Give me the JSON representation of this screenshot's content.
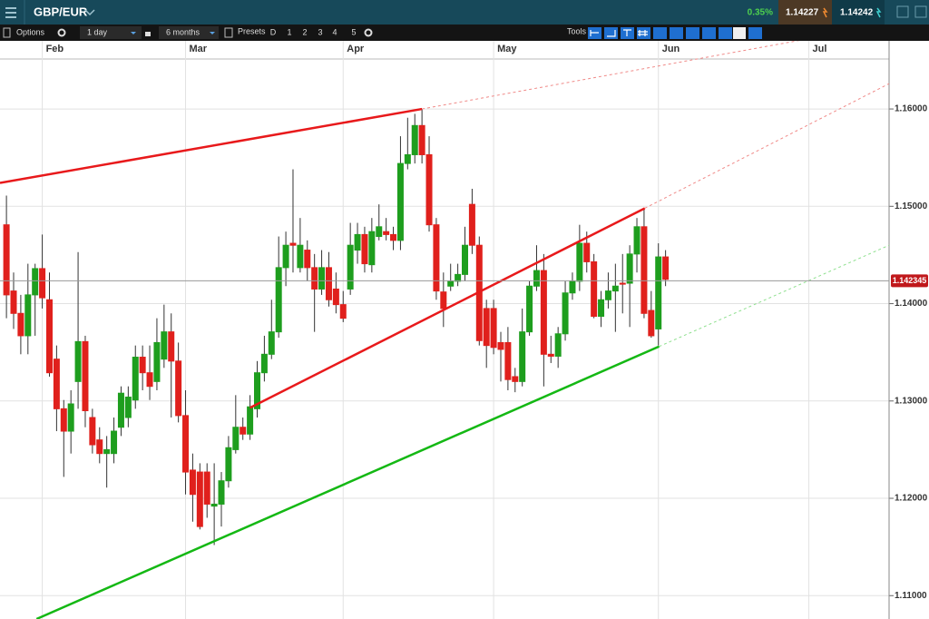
{
  "header": {
    "symbol": "GBP/EUR",
    "change": "0.35%",
    "sell": "1.14227",
    "buy": "1.14242"
  },
  "toolbar": {
    "options": "Options",
    "interval": "1 day",
    "range": "6 months",
    "presets": "Presets",
    "preset_buttons": [
      "D",
      "1",
      "2",
      "3",
      "4",
      "5"
    ],
    "tools": "Tools"
  },
  "chart_data": {
    "type": "candlestick",
    "x": [
      0,
      1,
      2,
      3,
      4,
      5,
      6,
      7,
      8,
      9,
      10,
      11,
      12,
      13,
      14,
      15,
      16,
      17,
      18,
      19,
      20,
      21,
      22,
      23,
      24,
      25,
      26,
      27,
      28,
      29,
      30,
      31,
      32,
      33,
      34,
      35,
      36,
      37,
      38,
      39,
      40,
      41,
      42,
      43,
      44,
      45,
      46,
      47,
      48,
      49,
      50,
      51,
      52,
      53,
      54,
      55,
      56,
      57,
      58,
      59,
      60,
      61,
      62,
      63,
      64,
      65,
      66,
      67,
      68,
      69,
      70,
      71,
      72,
      73,
      74,
      75,
      76,
      77,
      78,
      79,
      80,
      81,
      82,
      83,
      84,
      85,
      86,
      87,
      88,
      89,
      90,
      91,
      92
    ],
    "open": [
      1.1481,
      1.1413,
      1.139,
      1.1367,
      1.1409,
      1.1436,
      1.1404,
      1.1343,
      1.1292,
      1.1269,
      1.132,
      1.1361,
      1.1283,
      1.126,
      1.1246,
      1.1246,
      1.1273,
      1.1283,
      1.1301,
      1.1345,
      1.1329,
      1.132,
      1.1343,
      1.1371,
      1.1341,
      1.1285,
      1.1229,
      1.1227,
      1.1227,
      1.1192,
      1.1194,
      1.1218,
      1.125,
      1.1273,
      1.1266,
      1.1292,
      1.1329,
      1.1348,
      1.1371,
      1.1437,
      1.1462,
      1.1437,
      1.1455,
      1.1437,
      1.1415,
      1.1437,
      1.1415,
      1.1399,
      1.1415,
      1.1455,
      1.1471,
      1.144,
      1.1469,
      1.1474,
      1.1471,
      1.1465,
      1.1544,
      1.1553,
      1.1583,
      1.1553,
      1.1481,
      1.1412,
      1.1418,
      1.1423,
      1.143,
      1.1502,
      1.146,
      1.1395,
      1.1395,
      1.136,
      1.136,
      1.1325,
      1.132,
      1.1371,
      1.1418,
      1.1434,
      1.1348,
      1.1346,
      1.1369,
      1.1411,
      1.1423,
      1.1462,
      1.1443,
      1.1387,
      1.1404,
      1.1413,
      1.1421,
      1.1421,
      1.1451,
      1.1479,
      1.1393,
      1.1374,
      1.1448
    ],
    "high": [
      1.1511,
      1.1432,
      1.1409,
      1.1441,
      1.1441,
      1.1471,
      1.1432,
      1.1357,
      1.1301,
      1.1311,
      1.1453,
      1.1367,
      1.1292,
      1.1273,
      1.1264,
      1.1283,
      1.1315,
      1.1315,
      1.1357,
      1.1357,
      1.1357,
      1.1385,
      1.1399,
      1.139,
      1.136,
      1.1311,
      1.1246,
      1.1236,
      1.1236,
      1.1236,
      1.1227,
      1.1264,
      1.1306,
      1.1283,
      1.1306,
      1.1341,
      1.1367,
      1.1404,
      1.1469,
      1.1474,
      1.1538,
      1.1488,
      1.1465,
      1.1451,
      1.1455,
      1.1453,
      1.1432,
      1.1413,
      1.1483,
      1.1483,
      1.1479,
      1.1488,
      1.1502,
      1.1488,
      1.1479,
      1.1572,
      1.1591,
      1.1595,
      1.16,
      1.1572,
      1.1488,
      1.1432,
      1.1441,
      1.1441,
      1.1479,
      1.1518,
      1.1469,
      1.1404,
      1.1404,
      1.1371,
      1.1376,
      1.1334,
      1.1395,
      1.1423,
      1.146,
      1.1451,
      1.1367,
      1.1376,
      1.1423,
      1.1432,
      1.1481,
      1.1474,
      1.1451,
      1.1413,
      1.1432,
      1.1441,
      1.1451,
      1.146,
      1.1488,
      1.1497,
      1.1413,
      1.1462,
      1.1455
    ],
    "low": [
      1.1385,
      1.1374,
      1.1348,
      1.1348,
      1.1367,
      1.1395,
      1.1325,
      1.1269,
      1.1222,
      1.1246,
      1.1292,
      1.1273,
      1.1246,
      1.1236,
      1.1211,
      1.1236,
      1.1264,
      1.1273,
      1.1292,
      1.1311,
      1.1301,
      1.1311,
      1.1334,
      1.1283,
      1.1278,
      1.1204,
      1.1176,
      1.1168,
      1.118,
      1.1152,
      1.1171,
      1.1211,
      1.1246,
      1.126,
      1.126,
      1.1283,
      1.132,
      1.1343,
      1.1365,
      1.1418,
      1.1432,
      1.1432,
      1.1423,
      1.1371,
      1.1409,
      1.1397,
      1.139,
      1.1381,
      1.1409,
      1.1441,
      1.1432,
      1.1432,
      1.1465,
      1.1465,
      1.1455,
      1.1455,
      1.1538,
      1.1544,
      1.1544,
      1.1474,
      1.1404,
      1.1376,
      1.1413,
      1.1418,
      1.1423,
      1.1451,
      1.1357,
      1.1334,
      1.1348,
      1.132,
      1.1311,
      1.1309,
      1.1315,
      1.1367,
      1.1413,
      1.1315,
      1.1339,
      1.1334,
      1.1362,
      1.1404,
      1.1413,
      1.1432,
      1.1385,
      1.1376,
      1.1395,
      1.1371,
      1.139,
      1.1376,
      1.1432,
      1.1385,
      1.1365,
      1.1357,
      1.1418
    ],
    "close": [
      1.1409,
      1.139,
      1.1367,
      1.1409,
      1.1436,
      1.1406,
      1.1329,
      1.1292,
      1.1269,
      1.1297,
      1.1361,
      1.129,
      1.1255,
      1.1246,
      1.125,
      1.1269,
      1.1308,
      1.1304,
      1.1345,
      1.1329,
      1.1315,
      1.136,
      1.1371,
      1.1341,
      1.1285,
      1.1227,
      1.1204,
      1.1171,
      1.1194,
      1.1194,
      1.1218,
      1.1252,
      1.1273,
      1.1266,
      1.1294,
      1.1329,
      1.1348,
      1.1371,
      1.1437,
      1.146,
      1.146,
      1.146,
      1.1437,
      1.1415,
      1.1437,
      1.1404,
      1.1399,
      1.1385,
      1.146,
      1.1471,
      1.1441,
      1.1474,
      1.1479,
      1.1471,
      1.1465,
      1.1544,
      1.1553,
      1.1583,
      1.1553,
      1.1481,
      1.1413,
      1.1395,
      1.1423,
      1.143,
      1.146,
      1.146,
      1.1362,
      1.1357,
      1.1355,
      1.1353,
      1.1322,
      1.132,
      1.1371,
      1.1418,
      1.1434,
      1.1348,
      1.1346,
      1.1369,
      1.1411,
      1.1423,
      1.1462,
      1.1443,
      1.1387,
      1.1404,
      1.1413,
      1.1418,
      1.142,
      1.1451,
      1.1479,
      1.139,
      1.1367,
      1.1448,
      1.1425
    ],
    "up_color": "#1e9e1e",
    "down_color": "#e0201c",
    "xlim": [
      -0.9,
      123.2
    ],
    "ylim": [
      1.1076,
      1.167
    ],
    "xticks": [
      {
        "value": 5,
        "label": "Feb"
      },
      {
        "value": 25,
        "label": "Mar"
      },
      {
        "value": 47,
        "label": "Apr"
      },
      {
        "value": 68,
        "label": "May"
      },
      {
        "value": 91,
        "label": "Jun"
      },
      {
        "value": 112,
        "label": "Jul"
      }
    ],
    "yticks": [
      {
        "value": 1.11,
        "label": "1.11000"
      },
      {
        "value": 1.12,
        "label": "1.12000"
      },
      {
        "value": 1.13,
        "label": "1.13000"
      },
      {
        "value": 1.14,
        "label": "1.14000"
      },
      {
        "value": 1.15,
        "label": "1.15000"
      },
      {
        "value": 1.16,
        "label": "1.16000"
      }
    ],
    "grid": true,
    "last_price": 1.142345,
    "trendlines": [
      {
        "color": "#e8191b",
        "style": "solid",
        "x": [
          -0.9,
          58
        ],
        "y": [
          1.1524,
          1.16
        ]
      },
      {
        "color": "#f08a88",
        "style": "dashed",
        "x": [
          58,
          111.1
        ],
        "y": [
          1.16,
          1.1671
        ]
      },
      {
        "color": "#e8191b",
        "style": "solid",
        "x": [
          34,
          89.1
        ],
        "y": [
          1.1293,
          1.1498
        ]
      },
      {
        "color": "#f08a88",
        "style": "dashed",
        "x": [
          89.1,
          123.2
        ],
        "y": [
          1.1498,
          1.1626
        ]
      },
      {
        "color": "#14b814",
        "style": "solid",
        "x": [
          4.2,
          91.1
        ],
        "y": [
          1.1076,
          1.1356
        ]
      },
      {
        "color": "#8fe08f",
        "style": "dashed",
        "x": [
          91.1,
          123.2
        ],
        "y": [
          1.1356,
          1.146
        ]
      }
    ]
  }
}
